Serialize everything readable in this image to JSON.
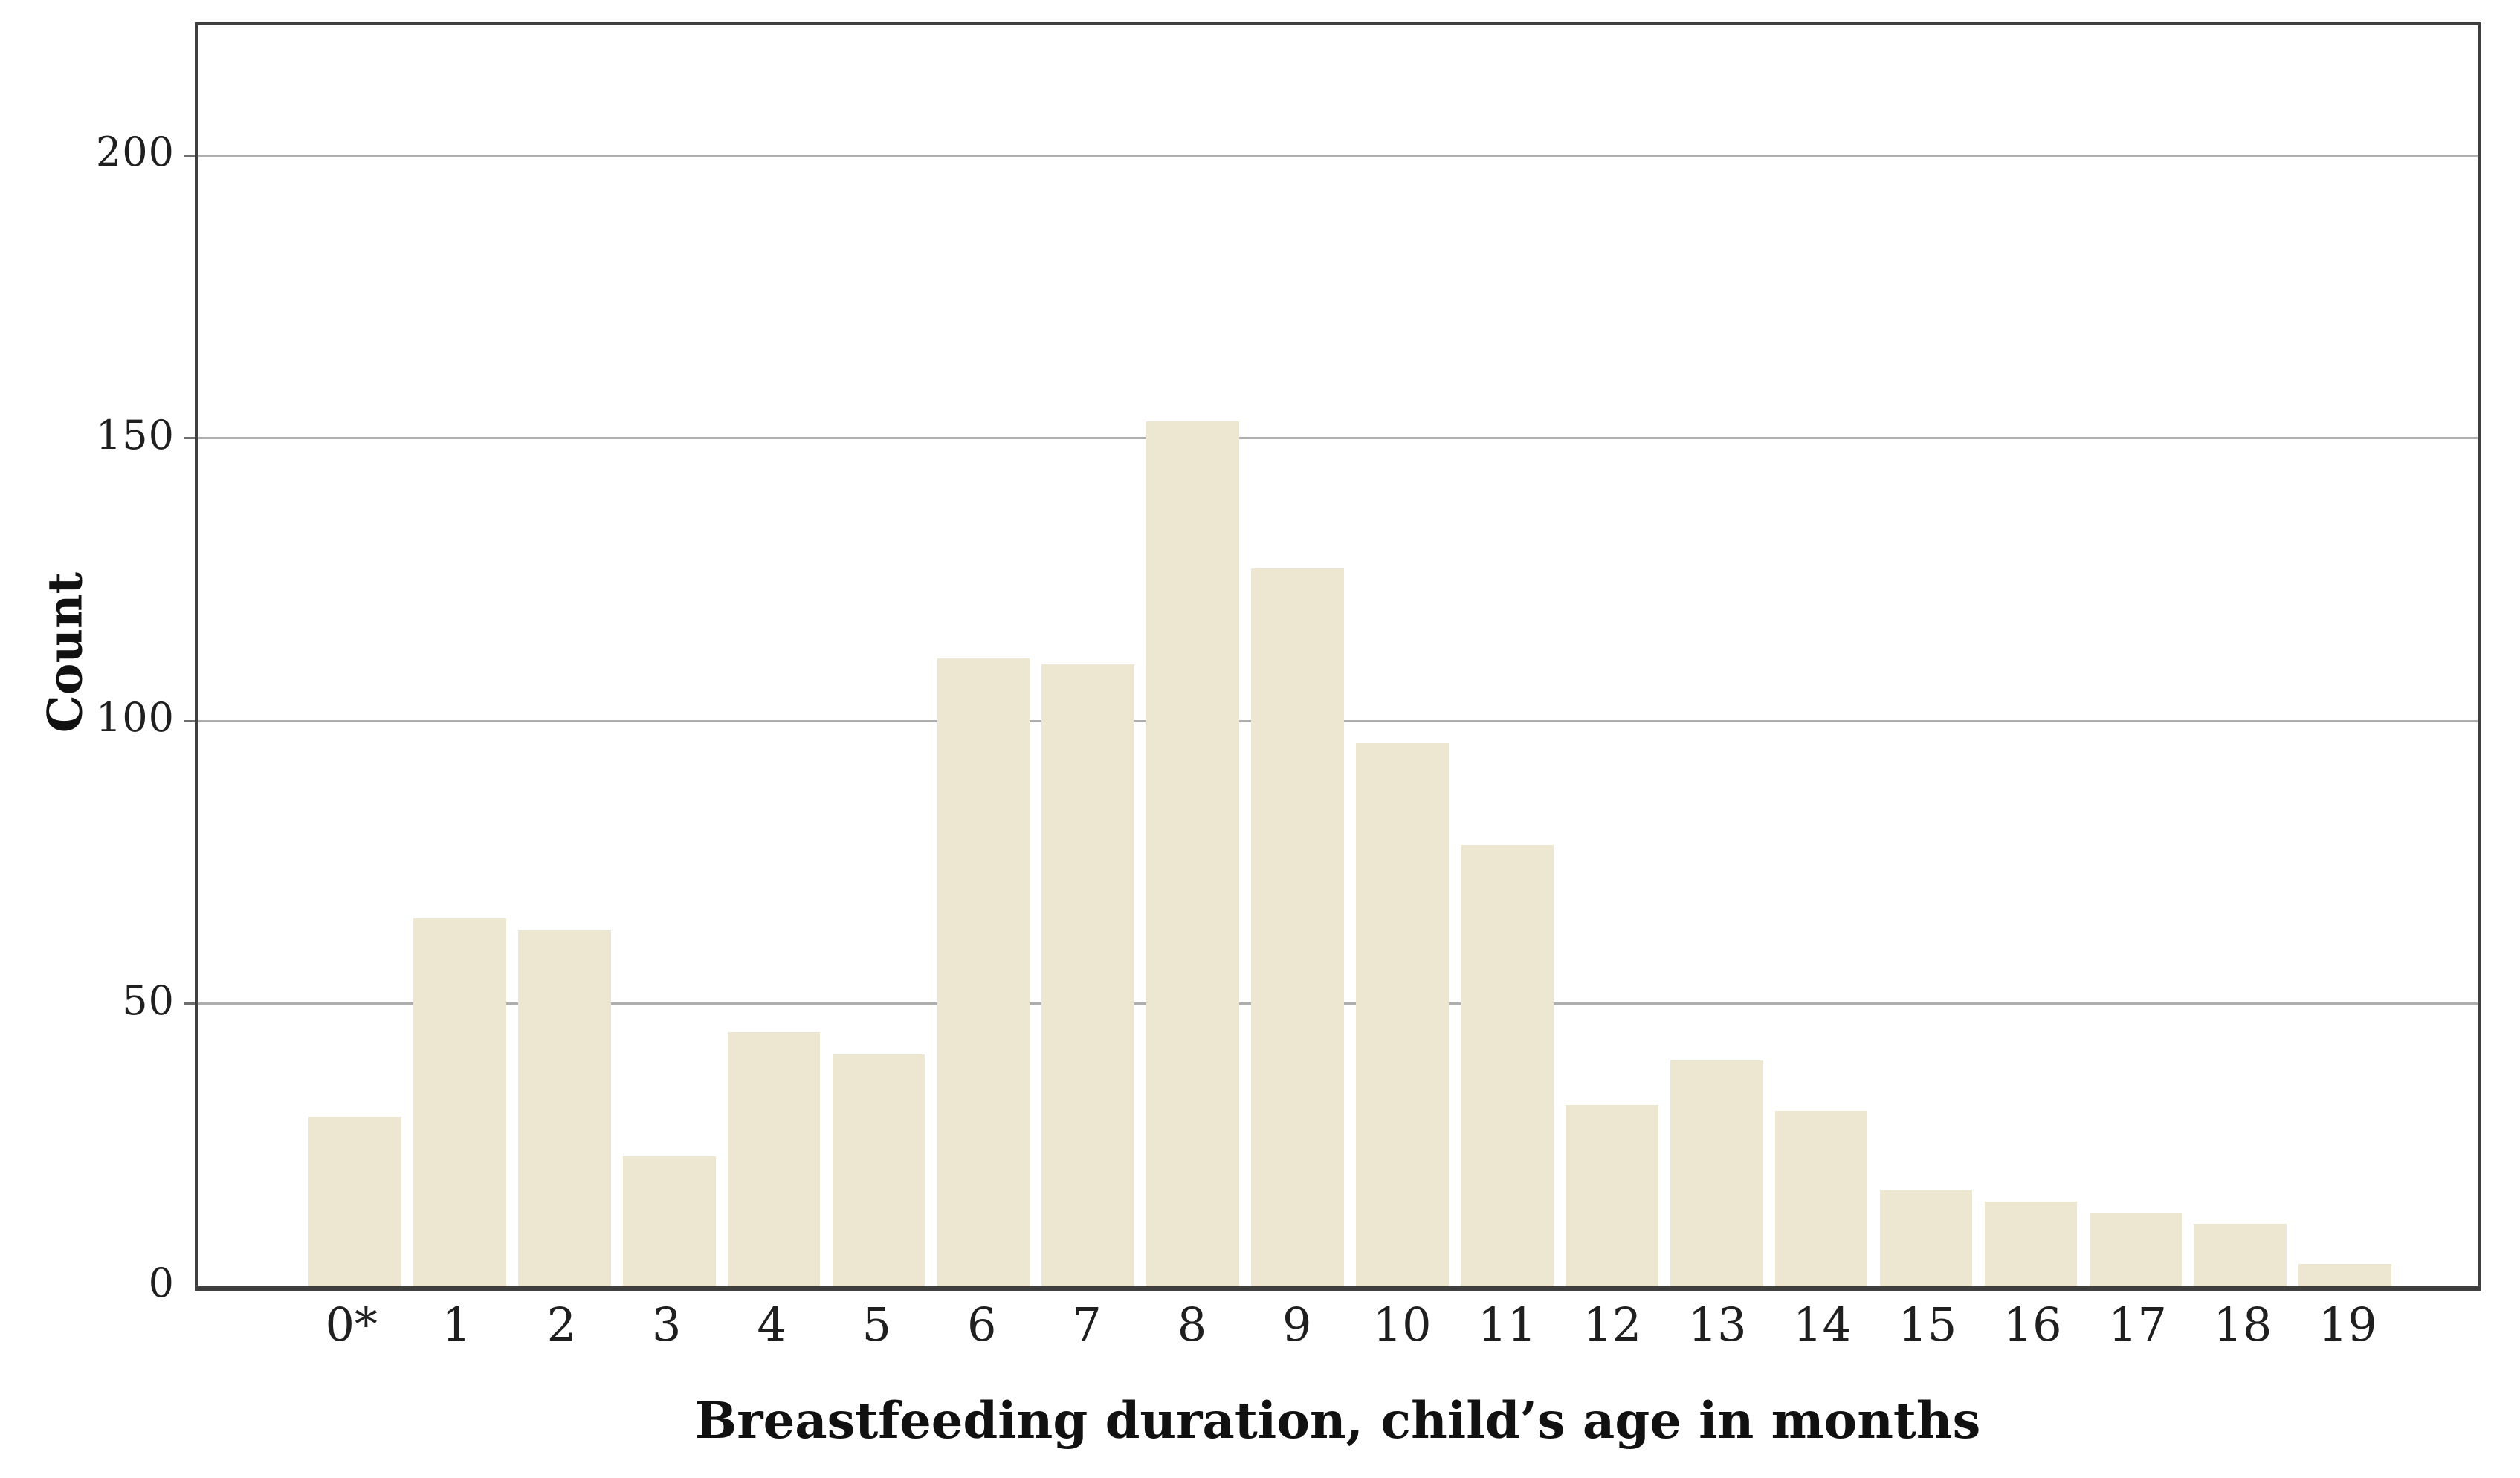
{
  "figure": {
    "background": "#ffffff",
    "bar_color": "#ede7d2",
    "gridline_color": "#aeaeae",
    "axis_color": "#3f3f3f",
    "text_color": "#1f1f1f"
  },
  "chart_data": {
    "type": "bar",
    "title": "",
    "xlabel": "Breastfeeding duration, child’s age in months",
    "ylabel": "Count",
    "categories": [
      "0*",
      "1",
      "2",
      "3",
      "4",
      "5",
      "6",
      "7",
      "8",
      "9",
      "10",
      "11",
      "12",
      "13",
      "14",
      "15",
      "16",
      "17",
      "18",
      "19"
    ],
    "values": [
      30,
      65,
      63,
      23,
      45,
      41,
      111,
      110,
      153,
      127,
      96,
      78,
      32,
      40,
      31,
      17,
      15,
      13,
      11,
      4
    ],
    "yticks": [
      0,
      50,
      100,
      150,
      200
    ],
    "ylim": [
      0,
      223
    ],
    "grid": "horizontal",
    "legend": "none",
    "footnote_marker_on_first_category": "*"
  }
}
